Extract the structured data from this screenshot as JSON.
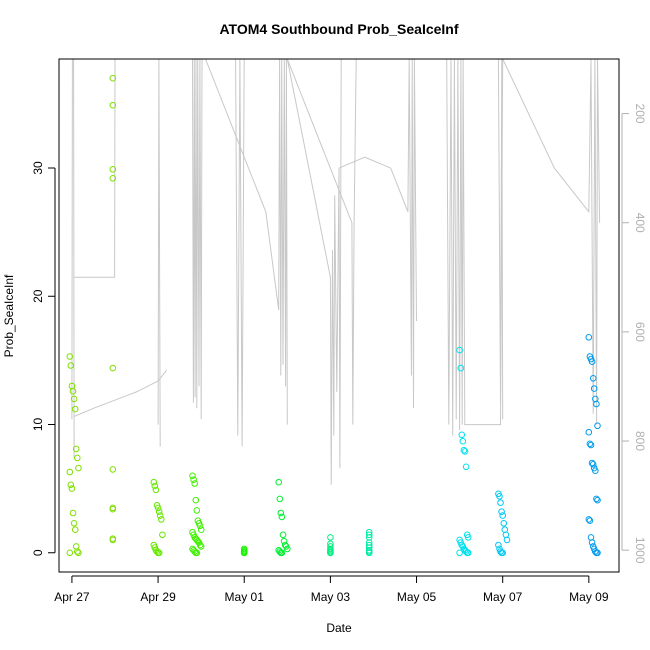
{
  "chart_data": {
    "type": "scatter",
    "title": "ATOM4 Southbound Prob_SeaIceInf",
    "xlabel": "Date",
    "ylabel": "Prob_SeaIceInf",
    "x_ticks": [
      "Apr 27",
      "Apr 29",
      "May 01",
      "May 03",
      "May 05",
      "May 07",
      "May 09"
    ],
    "y_ticks": [
      "0",
      "10",
      "20",
      "30"
    ],
    "right_ticks": [
      "200",
      "400",
      "600",
      "800",
      "1000"
    ],
    "xlim_days": [
      -0.3,
      12.7
    ],
    "ylim": [
      -1.5,
      38.5
    ],
    "right_axis": {
      "range": [
        1040,
        100
      ],
      "reversed": true,
      "color": "#b0b0b0",
      "series_name": ""
    },
    "grid": false,
    "legend": "none",
    "point_clusters": [
      {
        "day": 0.05,
        "color": "#7fe000",
        "values": [
          15.3,
          14.6,
          13.0,
          12.6,
          12.0,
          11.2,
          8.1,
          7.4,
          6.6,
          6.3,
          5.3,
          5.0,
          3.1,
          2.3,
          1.8,
          0.5,
          0.1,
          0.0,
          0.0
        ]
      },
      {
        "day": 0.95,
        "color": "#7fe000",
        "values": [
          37.0,
          34.9,
          29.9,
          29.2,
          14.4,
          6.5,
          3.5,
          3.4,
          1.1,
          1.0
        ]
      },
      {
        "day": 2.0,
        "color": "#66e800",
        "values": [
          5.5,
          5.2,
          4.9,
          3.7,
          3.5,
          3.2,
          2.9,
          2.6,
          1.4,
          0.6,
          0.4,
          0.2,
          0.1,
          0.0,
          0.0
        ]
      },
      {
        "day": 2.9,
        "color": "#3ff000",
        "values": [
          6.0,
          5.7,
          5.4,
          4.1,
          3.3,
          2.5,
          2.3,
          2.1,
          1.8,
          1.6,
          1.4,
          1.2,
          1.1,
          1.0,
          0.9,
          0.8,
          0.6,
          0.5,
          0.3,
          0.2,
          0.1,
          0.0,
          0.0
        ]
      },
      {
        "day": 4.0,
        "color": "#1af200",
        "values": [
          0.3,
          0.2,
          0.1,
          0.1,
          0.0,
          0.0,
          0.0,
          0.0
        ]
      },
      {
        "day": 4.9,
        "color": "#00f030",
        "values": [
          5.5,
          4.2,
          3.1,
          2.8,
          1.4,
          0.9,
          0.6,
          0.5,
          0.3,
          0.2,
          0.1,
          0.0,
          0.0
        ]
      },
      {
        "day": 6.0,
        "color": "#00ee80",
        "values": [
          1.2,
          0.7,
          0.5,
          0.3,
          0.2,
          0.1,
          0.0,
          0.0
        ]
      },
      {
        "day": 6.9,
        "color": "#00eaa8",
        "values": [
          1.6,
          1.4,
          1.2,
          0.8,
          0.6,
          0.4,
          0.2,
          0.1,
          0.0,
          0.0
        ]
      },
      {
        "day": 9.1,
        "color": "#00e0f0",
        "values": [
          15.8,
          14.4,
          9.2,
          8.7,
          8.0,
          7.9,
          6.7,
          1.4,
          1.2,
          1.0,
          0.8,
          0.6,
          0.5,
          0.3,
          0.2,
          0.1,
          0.0,
          0.0,
          0.0
        ]
      },
      {
        "day": 10.0,
        "color": "#00c8f4",
        "values": [
          4.6,
          4.4,
          3.9,
          3.2,
          2.9,
          2.3,
          1.8,
          1.4,
          1.0,
          0.6,
          0.3,
          0.1,
          0.0,
          0.0
        ]
      },
      {
        "day": 12.1,
        "color": "#009cf0",
        "values": [
          16.8,
          15.3,
          15.1,
          14.9,
          13.6,
          12.8,
          12.0,
          11.6,
          9.9,
          9.4,
          8.5,
          8.4,
          7.0,
          6.9,
          6.6,
          6.4,
          4.2,
          4.1,
          2.6,
          2.5,
          1.2,
          0.8,
          0.5,
          0.3,
          0.1,
          0.0,
          0.0
        ]
      }
    ],
    "depth_trace": {
      "color": "#c8c8c8",
      "segments": [
        [
          [
            0.0,
            760
          ],
          [
            0.01,
            100
          ],
          [
            0.04,
            100
          ],
          [
            0.05,
            830
          ],
          [
            0.05,
            790
          ]
        ],
        [
          [
            0.05,
            500
          ],
          [
            0.5,
            500
          ],
          [
            0.99,
            500
          ],
          [
            1.0,
            100
          ],
          [
            1.02,
            100
          ]
        ],
        [
          [
            0.05,
            755
          ],
          [
            0.5,
            740
          ],
          [
            1.5,
            710
          ],
          [
            2.0,
            690
          ],
          [
            2.2,
            670
          ]
        ],
        [
          [
            2.0,
            770
          ],
          [
            2.02,
            100
          ],
          [
            2.05,
            810
          ]
        ],
        [
          [
            1.2,
            100
          ],
          [
            2.5,
            100
          ],
          [
            2.8,
            100
          ],
          [
            2.82,
            730
          ],
          [
            2.84,
            100
          ],
          [
            2.86,
            720
          ],
          [
            2.88,
            100
          ],
          [
            2.9,
            740
          ],
          [
            2.92,
            100
          ],
          [
            2.95,
            700
          ],
          [
            2.97,
            100
          ],
          [
            3.0,
            760
          ],
          [
            3.02,
            100
          ]
        ],
        [
          [
            3.1,
            100
          ],
          [
            3.5,
            100
          ],
          [
            3.8,
            100
          ],
          [
            3.85,
            790
          ],
          [
            3.9,
            100
          ],
          [
            3.95,
            810
          ],
          [
            4.0,
            100
          ]
        ],
        [
          [
            3.1,
            100
          ],
          [
            4.5,
            380
          ],
          [
            4.8,
            560
          ],
          [
            4.82,
            100
          ],
          [
            4.85,
            680
          ],
          [
            4.87,
            100
          ],
          [
            4.9,
            660
          ],
          [
            4.93,
            100
          ],
          [
            4.96,
            700
          ],
          [
            4.98,
            100
          ],
          [
            5.0,
            770
          ]
        ],
        [
          [
            5.0,
            100
          ],
          [
            5.5,
            200
          ],
          [
            6.5,
            400
          ],
          [
            6.52,
            770
          ],
          [
            6.55,
            400
          ],
          [
            6.6,
            100
          ]
        ],
        [
          [
            5.0,
            100
          ],
          [
            6.0,
            500
          ],
          [
            6.02,
            880
          ],
          [
            6.05,
            450
          ],
          [
            6.08,
            790
          ],
          [
            6.1,
            350
          ],
          [
            6.15,
            710
          ],
          [
            6.2,
            300
          ],
          [
            6.22,
            850
          ],
          [
            6.25,
            100
          ]
        ],
        [
          [
            6.2,
            300
          ],
          [
            6.8,
            280
          ],
          [
            7.4,
            300
          ],
          [
            7.8,
            380
          ],
          [
            7.83,
            100
          ],
          [
            7.88,
            680
          ],
          [
            7.9,
            100
          ],
          [
            7.93,
            740
          ],
          [
            7.95,
            100
          ],
          [
            8.0,
            580
          ]
        ],
        [
          [
            6.4,
            100
          ],
          [
            7.0,
            100
          ],
          [
            8.0,
            100
          ],
          [
            8.7,
            100
          ],
          [
            8.75,
            770
          ],
          [
            8.8,
            100
          ],
          [
            8.84,
            790
          ],
          [
            8.88,
            100
          ],
          [
            8.92,
            760
          ],
          [
            8.96,
            100
          ],
          [
            9.0,
            780
          ],
          [
            9.03,
            100
          ],
          [
            9.06,
            770
          ],
          [
            9.08,
            100
          ],
          [
            9.12,
            770
          ],
          [
            9.5,
            770
          ],
          [
            9.95,
            770
          ],
          [
            10.0,
            100
          ]
        ],
        [
          [
            9.2,
            100
          ],
          [
            9.6,
            100
          ],
          [
            9.9,
            100
          ],
          [
            9.95,
            730
          ],
          [
            9.98,
            100
          ],
          [
            10.0,
            760
          ]
        ],
        [
          [
            10.0,
            100
          ],
          [
            11.2,
            300
          ],
          [
            12.0,
            380
          ],
          [
            12.05,
            100
          ],
          [
            12.1,
            750
          ],
          [
            12.14,
            100
          ],
          [
            12.18,
            770
          ],
          [
            12.2,
            100
          ],
          [
            12.25,
            400
          ]
        ]
      ]
    }
  }
}
